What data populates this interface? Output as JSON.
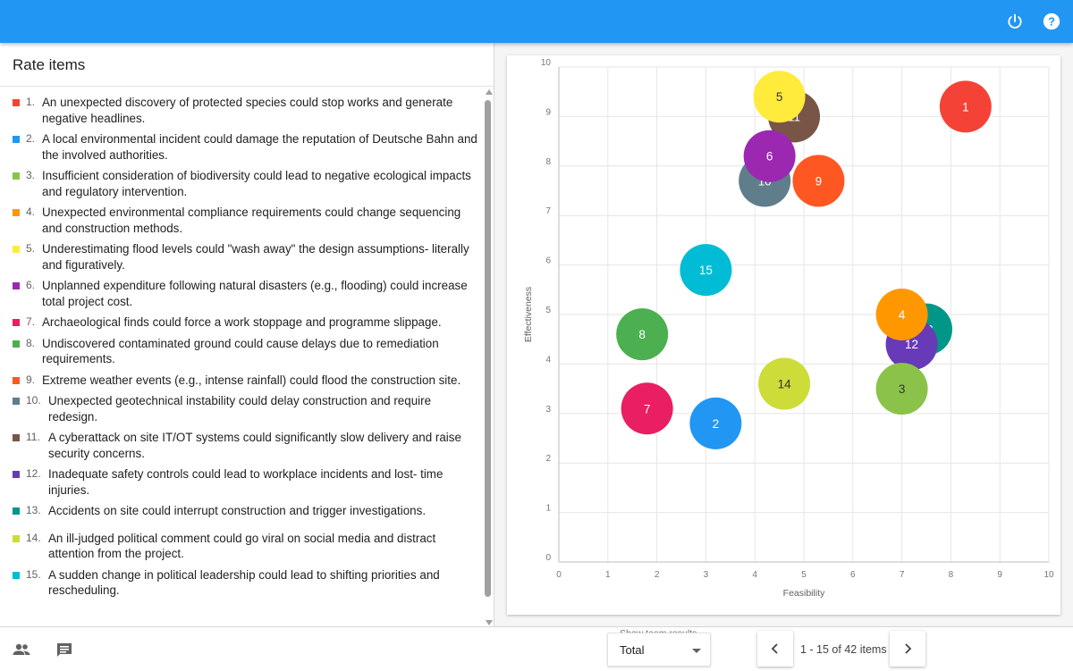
{
  "header": {
    "power_icon": "power-icon",
    "help_icon": "help-icon",
    "color": "#2196f3"
  },
  "panel": {
    "title": "Rate items"
  },
  "items": [
    {
      "n": "1.",
      "text": "An unexpected discovery of protected species could stop works and generate negative headlines.",
      "color": "#f44336"
    },
    {
      "n": "2.",
      "text": "A local environmental incident could damage the reputation of Deutsche Bahn and the involved authorities.",
      "color": "#2196f3"
    },
    {
      "n": "3.",
      "text": "Insufficient consideration of biodiversity could lead to negative ecological impacts and regulatory intervention.",
      "color": "#8bc34a"
    },
    {
      "n": "4.",
      "text": "Unexpected environmental compliance requirements could change sequencing and construction methods.",
      "color": "#ff9800"
    },
    {
      "n": "5.",
      "text": "Underestimating flood levels could \"wash away\" the design assumptions- literally and figuratively.",
      "color": "#ffeb3b"
    },
    {
      "n": "6.",
      "text": "Unplanned expenditure following natural disasters (e.g., flooding) could increase total project cost.",
      "color": "#9c27b0"
    },
    {
      "n": "7.",
      "text": "Archaeological finds could force a work stoppage and programme slippage.",
      "color": "#e91e63"
    },
    {
      "n": "8.",
      "text": "Undiscovered contaminated ground could cause delays due to remediation requirements.",
      "color": "#4caf50"
    },
    {
      "n": "9.",
      "text": "Extreme weather events (e.g., intense rainfall) could flood the construction site.",
      "color": "#ff5722"
    },
    {
      "n": "10.",
      "text": "Unexpected geotechnical instability could delay construction and require redesign.",
      "color": "#607d8b"
    },
    {
      "n": "11.",
      "text": "A cyberattack on site IT/OT systems could significantly slow delivery and raise security concerns.",
      "color": "#795548"
    },
    {
      "n": "12.",
      "text": "Inadequate safety controls could lead to workplace incidents and lost- time injuries.",
      "color": "#673ab7"
    },
    {
      "n": "13.",
      "text": "Accidents on site could interrupt construction and trigger investigations.",
      "color": "#009688"
    },
    {
      "n": "14.",
      "text": "An ill-judged political comment could go viral on social media and distract attention from the project.",
      "color": "#cddc39"
    },
    {
      "n": "15.",
      "text": "A sudden change in political leadership could lead to shifting priorities and rescheduling.",
      "color": "#00bcd4"
    }
  ],
  "chart_data": {
    "type": "scatter",
    "xlabel": "Feasibility",
    "ylabel": "Effectiveness",
    "xlim": [
      0,
      10
    ],
    "ylim": [
      0,
      10
    ],
    "xticks": [
      "0",
      "1",
      "2",
      "3",
      "4",
      "5",
      "6",
      "7",
      "8",
      "9",
      "10"
    ],
    "yticks": [
      "0",
      "1",
      "2",
      "3",
      "4",
      "5",
      "6",
      "7",
      "8",
      "9",
      "10"
    ],
    "grid": true,
    "points": [
      {
        "label": "11",
        "x": 4.8,
        "y": 9.0,
        "color": "#795548"
      },
      {
        "label": "1",
        "x": 8.3,
        "y": 9.2,
        "color": "#f44336"
      },
      {
        "label": "5",
        "x": 4.5,
        "y": 9.4,
        "color": "#ffeb3b"
      },
      {
        "label": "10",
        "x": 4.2,
        "y": 7.7,
        "color": "#607d8b"
      },
      {
        "label": "6",
        "x": 4.3,
        "y": 8.2,
        "color": "#9c27b0"
      },
      {
        "label": "9",
        "x": 5.3,
        "y": 7.7,
        "color": "#ff5722"
      },
      {
        "label": "15",
        "x": 3.0,
        "y": 5.9,
        "color": "#00bcd4"
      },
      {
        "label": "13",
        "x": 7.5,
        "y": 4.7,
        "color": "#009688"
      },
      {
        "label": "12",
        "x": 7.2,
        "y": 4.4,
        "color": "#673ab7"
      },
      {
        "label": "4",
        "x": 7.0,
        "y": 5.0,
        "color": "#ff9800"
      },
      {
        "label": "8",
        "x": 1.7,
        "y": 4.6,
        "color": "#4caf50"
      },
      {
        "label": "14",
        "x": 4.6,
        "y": 3.6,
        "color": "#cddc39"
      },
      {
        "label": "3",
        "x": 7.0,
        "y": 3.5,
        "color": "#8bc34a"
      },
      {
        "label": "7",
        "x": 1.8,
        "y": 3.1,
        "color": "#e91e63"
      },
      {
        "label": "2",
        "x": 3.2,
        "y": 2.8,
        "color": "#2196f3"
      }
    ]
  },
  "footer": {
    "team_icon": "people-icon",
    "comment_icon": "comment-icon",
    "select_label": "Show team results",
    "select_value": "Total",
    "pager_text": "1 - 15 of 42 items"
  }
}
